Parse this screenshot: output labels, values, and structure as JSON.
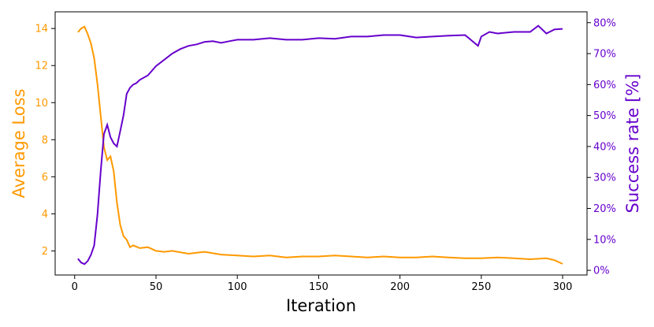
{
  "chart_data": {
    "type": "line",
    "title": "",
    "xlabel": "Iteration",
    "ylabel_left": "Average Loss",
    "ylabel_right": "Success rate [%]",
    "xlim": [
      -12,
      315
    ],
    "ylim_left": [
      0.7,
      14.9
    ],
    "ylim_right": [
      -1.5,
      83.5
    ],
    "x_ticks": [
      "0",
      "50",
      "100",
      "150",
      "200",
      "250",
      "300"
    ],
    "y_ticks_left": [
      "2",
      "4",
      "6",
      "8",
      "10",
      "12",
      "14"
    ],
    "y_ticks_right": [
      "0%",
      "10%",
      "20%",
      "30%",
      "40%",
      "50%",
      "60%",
      "70%",
      "80%"
    ],
    "grid": false,
    "colors": {
      "loss": "#FF9900",
      "success": "#6600CC",
      "axis": "#000000"
    },
    "series": [
      {
        "axis": "left",
        "x": [
          2,
          4,
          6,
          8,
          10,
          12,
          14,
          16,
          18,
          20,
          22,
          24,
          26,
          28,
          30,
          32,
          34,
          36,
          40,
          45,
          50,
          55,
          60,
          70,
          80,
          90,
          100,
          110,
          120,
          130,
          140,
          150,
          160,
          170,
          180,
          190,
          200,
          210,
          220,
          230,
          240,
          250,
          260,
          270,
          280,
          290,
          295,
          300
        ],
        "values": [
          13.8,
          14.0,
          14.1,
          13.7,
          13.2,
          12.4,
          11.0,
          9.3,
          7.6,
          6.9,
          7.1,
          6.3,
          4.6,
          3.4,
          2.8,
          2.6,
          2.2,
          2.3,
          2.15,
          2.2,
          2.0,
          1.95,
          2.0,
          1.85,
          1.95,
          1.8,
          1.75,
          1.7,
          1.75,
          1.65,
          1.7,
          1.7,
          1.75,
          1.7,
          1.65,
          1.7,
          1.65,
          1.65,
          1.7,
          1.65,
          1.6,
          1.6,
          1.65,
          1.6,
          1.55,
          1.6,
          1.5,
          1.3
        ]
      },
      {
        "axis": "right",
        "x": [
          2,
          4,
          6,
          8,
          10,
          12,
          14,
          16,
          18,
          20,
          22,
          24,
          26,
          28,
          30,
          32,
          34,
          36,
          38,
          40,
          45,
          50,
          55,
          60,
          65,
          70,
          75,
          80,
          85,
          90,
          95,
          100,
          110,
          120,
          130,
          140,
          150,
          160,
          170,
          180,
          190,
          200,
          210,
          220,
          230,
          240,
          248,
          250,
          255,
          260,
          270,
          280,
          285,
          290,
          295,
          300
        ],
        "values": [
          3.8,
          2.5,
          2.0,
          3.0,
          5.0,
          8.0,
          18.0,
          32.0,
          44.0,
          47.0,
          43.0,
          41.0,
          40.0,
          45.0,
          50.0,
          57.0,
          59.0,
          60.0,
          60.5,
          61.5,
          63.0,
          66.0,
          68.0,
          70.0,
          71.5,
          72.5,
          73.0,
          73.8,
          74.0,
          73.5,
          74.0,
          74.5,
          74.5,
          75.0,
          74.5,
          74.5,
          75.0,
          74.8,
          75.5,
          75.5,
          76.0,
          76.0,
          75.2,
          75.5,
          75.8,
          76.0,
          72.5,
          75.5,
          77.0,
          76.5,
          77.0,
          77.0,
          79.0,
          76.5,
          77.8,
          78.0
        ]
      }
    ]
  }
}
